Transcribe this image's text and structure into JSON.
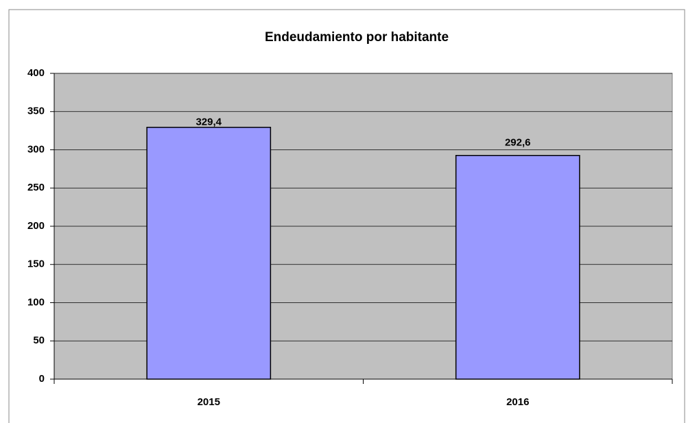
{
  "chart_data": {
    "type": "bar",
    "title": "Endeudamiento por habitante",
    "categories": [
      "2015",
      "2016"
    ],
    "values": [
      329.4,
      292.6
    ],
    "value_labels": [
      "329,4",
      "292,6"
    ],
    "color": "#9999ff",
    "ylim": [
      0,
      400
    ],
    "yticks": [
      0,
      50,
      100,
      150,
      200,
      250,
      300,
      350,
      400
    ],
    "grid": true
  }
}
